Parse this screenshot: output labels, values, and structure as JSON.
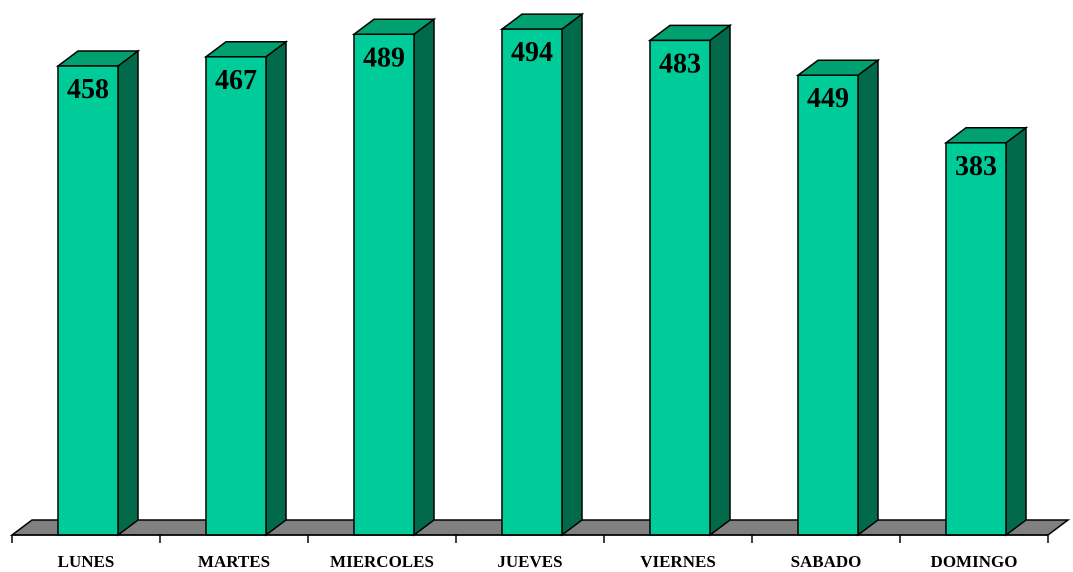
{
  "chart_data": {
    "type": "bar",
    "style": "3d-column",
    "categories": [
      "LUNES",
      "MARTES",
      "MIERCOLES",
      "JUEVES",
      "VIERNES",
      "SABADO",
      "DOMINGO"
    ],
    "values": [
      458,
      467,
      489,
      494,
      483,
      449,
      383
    ],
    "data_labels": [
      "458",
      "467",
      "489",
      "494",
      "483",
      "449",
      "383"
    ],
    "title": "",
    "xlabel": "",
    "ylabel": "",
    "ylim": [
      0,
      500
    ],
    "grid": false,
    "legend": "none",
    "colors": {
      "bar_front": "#00CC99",
      "bar_top": "#00A070",
      "bar_side": "#006A4A",
      "floor": "#808080",
      "outline": "#000000"
    }
  }
}
